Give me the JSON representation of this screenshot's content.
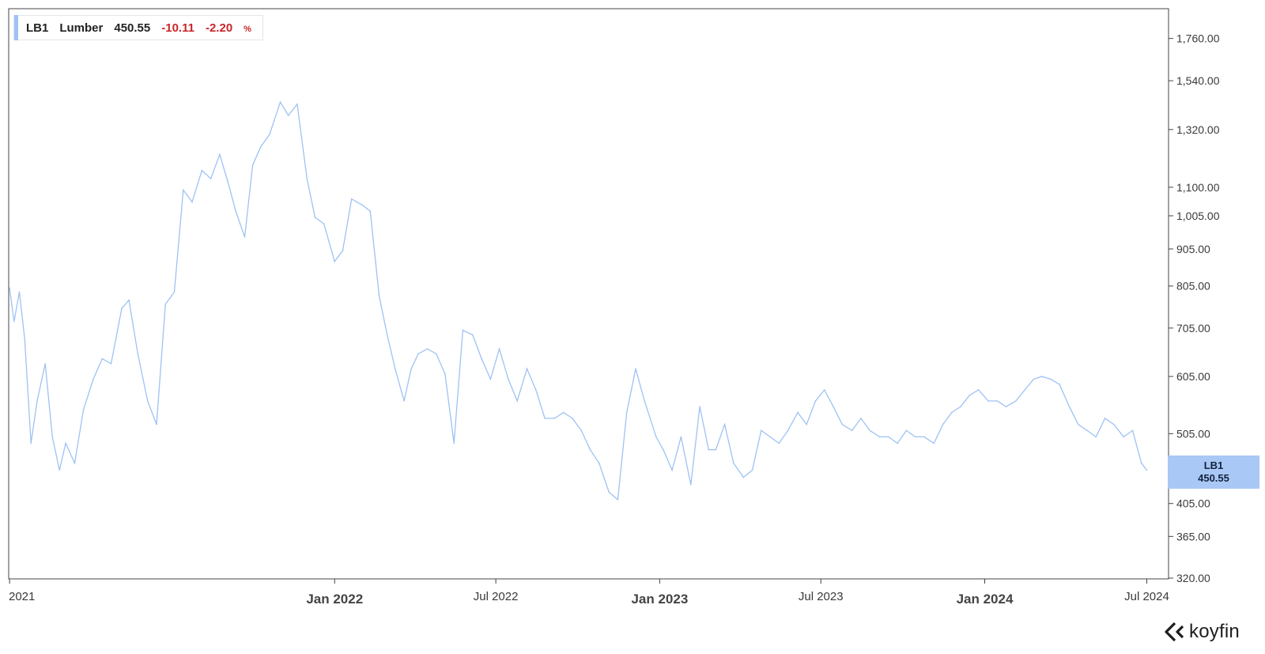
{
  "legend": {
    "ticker": "LB1",
    "name": "Lumber",
    "last": "450.55",
    "change": "-10.11",
    "change_pct": "-2.20",
    "pct_symbol": "%",
    "line_color": "#9ec2f3",
    "negative_color": "#c9252a"
  },
  "price_tag": {
    "ticker": "LB1",
    "value": "450.55"
  },
  "brand": {
    "name": "koyfin",
    "icon": "koyfin-logo-icon"
  },
  "chart_data": {
    "type": "line",
    "title": "",
    "xlabel": "",
    "ylabel": "",
    "y_scale": "log",
    "ylim": [
      320,
      1900
    ],
    "xlim": [
      "2020-12-31",
      "2024-07-05"
    ],
    "grid": false,
    "legend_position": "top-left",
    "y_ticks": [
      {
        "value": 1760,
        "label": "1,760.00"
      },
      {
        "value": 1540,
        "label": "1,540.00"
      },
      {
        "value": 1320,
        "label": "1,320.00"
      },
      {
        "value": 1100,
        "label": "1,100.00"
      },
      {
        "value": 1005,
        "label": "1,005.00"
      },
      {
        "value": 905,
        "label": "905.00"
      },
      {
        "value": 805,
        "label": "805.00"
      },
      {
        "value": 705,
        "label": "705.00"
      },
      {
        "value": 605,
        "label": "605.00"
      },
      {
        "value": 505,
        "label": "505.00"
      },
      {
        "value": 405,
        "label": "405.00"
      },
      {
        "value": 365,
        "label": "365.00"
      },
      {
        "value": 320,
        "label": "320.00"
      }
    ],
    "x_ticks": [
      {
        "date": "2021-01-01",
        "label": "2021",
        "major": false
      },
      {
        "date": "2022-01-01",
        "label": "Jan 2022",
        "major": true
      },
      {
        "date": "2022-07-01",
        "label": "Jul 2022",
        "major": false
      },
      {
        "date": "2023-01-01",
        "label": "Jan 2023",
        "major": true
      },
      {
        "date": "2023-07-01",
        "label": "Jul 2023",
        "major": false
      },
      {
        "date": "2024-01-01",
        "label": "Jan 2024",
        "major": true
      },
      {
        "date": "2024-07-01",
        "label": "Jul 2024",
        "major": false
      }
    ],
    "series": [
      {
        "name": "LB1",
        "x": [
          "2021-01-01",
          "2021-01-06",
          "2021-01-12",
          "2021-01-18",
          "2021-01-25",
          "2021-02-01",
          "2021-02-10",
          "2021-02-18",
          "2021-02-26",
          "2021-03-05",
          "2021-03-15",
          "2021-03-25",
          "2021-04-05",
          "2021-04-15",
          "2021-04-25",
          "2021-05-07",
          "2021-05-15",
          "2021-05-25",
          "2021-06-05",
          "2021-06-15",
          "2021-06-25",
          "2021-07-05",
          "2021-07-15",
          "2021-07-25",
          "2021-08-05",
          "2021-08-15",
          "2021-08-25",
          "2021-09-03",
          "2021-09-12",
          "2021-09-22",
          "2021-10-01",
          "2021-10-10",
          "2021-10-20",
          "2021-11-01",
          "2021-11-10",
          "2021-11-20",
          "2021-12-01",
          "2021-12-10",
          "2021-12-20",
          "2022-01-01",
          "2022-01-10",
          "2022-01-20",
          "2022-02-01",
          "2022-02-10",
          "2022-02-20",
          "2022-03-01",
          "2022-03-10",
          "2022-03-20",
          "2022-03-28",
          "2022-04-05",
          "2022-04-15",
          "2022-04-25",
          "2022-05-05",
          "2022-05-15",
          "2022-05-25",
          "2022-06-05",
          "2022-06-15",
          "2022-06-25",
          "2022-07-05",
          "2022-07-15",
          "2022-07-25",
          "2022-08-05",
          "2022-08-15",
          "2022-08-25",
          "2022-09-05",
          "2022-09-15",
          "2022-09-25",
          "2022-10-05",
          "2022-10-15",
          "2022-10-25",
          "2022-11-05",
          "2022-11-15",
          "2022-11-25",
          "2022-12-05",
          "2022-12-15",
          "2022-12-28",
          "2023-01-05",
          "2023-01-15",
          "2023-01-25",
          "2023-02-05",
          "2023-02-15",
          "2023-02-25",
          "2023-03-05",
          "2023-03-15",
          "2023-03-25",
          "2023-04-05",
          "2023-04-15",
          "2023-04-25",
          "2023-05-05",
          "2023-05-15",
          "2023-05-25",
          "2023-06-05",
          "2023-06-15",
          "2023-06-25",
          "2023-07-05",
          "2023-07-15",
          "2023-07-25",
          "2023-08-05",
          "2023-08-15",
          "2023-08-25",
          "2023-09-05",
          "2023-09-15",
          "2023-09-25",
          "2023-10-05",
          "2023-10-15",
          "2023-10-25",
          "2023-11-05",
          "2023-11-15",
          "2023-11-25",
          "2023-12-05",
          "2023-12-15",
          "2023-12-25",
          "2024-01-05",
          "2024-01-15",
          "2024-01-25",
          "2024-02-05",
          "2024-02-15",
          "2024-02-25",
          "2024-03-05",
          "2024-03-15",
          "2024-03-25",
          "2024-04-05",
          "2024-04-15",
          "2024-04-25",
          "2024-05-05",
          "2024-05-15",
          "2024-05-25",
          "2024-06-05",
          "2024-06-15",
          "2024-06-25",
          "2024-07-01"
        ],
        "values": [
          800,
          720,
          790,
          680,
          490,
          560,
          630,
          500,
          450,
          490,
          460,
          545,
          600,
          640,
          630,
          750,
          770,
          650,
          560,
          520,
          760,
          790,
          1090,
          1050,
          1160,
          1130,
          1220,
          1120,
          1020,
          940,
          1180,
          1250,
          1300,
          1440,
          1380,
          1430,
          1130,
          1000,
          980,
          870,
          900,
          1060,
          1040,
          1020,
          780,
          690,
          620,
          560,
          620,
          650,
          660,
          650,
          610,
          490,
          700,
          690,
          640,
          600,
          660,
          600,
          560,
          620,
          580,
          530,
          530,
          540,
          530,
          510,
          480,
          460,
          420,
          410,
          540,
          620,
          560,
          500,
          480,
          450,
          500,
          430,
          550,
          480,
          480,
          520,
          460,
          440,
          450,
          510,
          500,
          490,
          510,
          540,
          520,
          560,
          580,
          550,
          520,
          510,
          530,
          510,
          500,
          500,
          490,
          510,
          500,
          500,
          490,
          520,
          540,
          550,
          570,
          580,
          560,
          560,
          550,
          560,
          580,
          600,
          605,
          600,
          590,
          550,
          520,
          510,
          500,
          530,
          520,
          500,
          510,
          460,
          450
        ]
      }
    ]
  }
}
